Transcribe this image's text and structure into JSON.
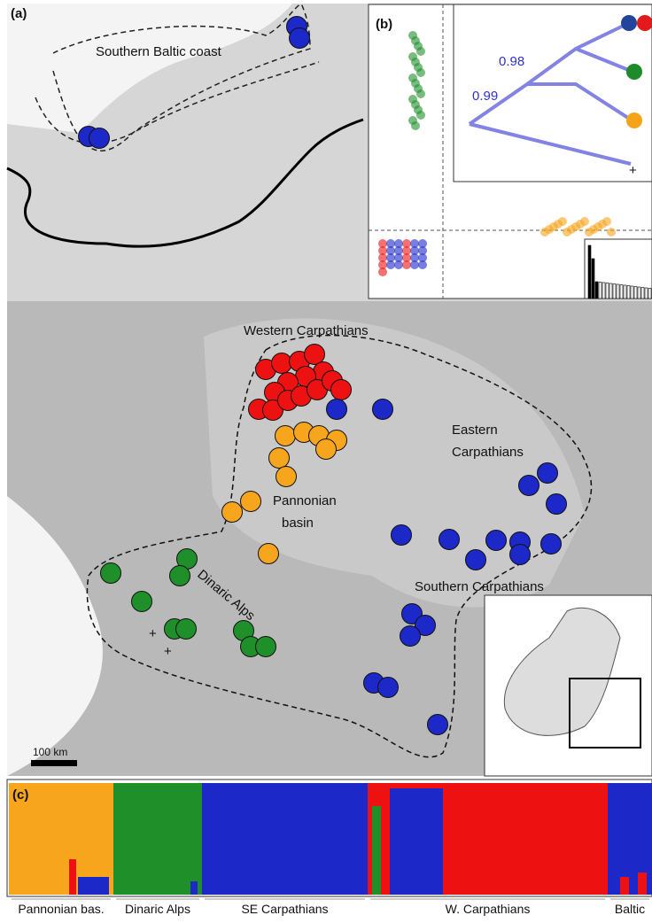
{
  "panel_a": {
    "label": "(a)",
    "regions": {
      "baltic": "Southern Baltic coast",
      "western": "Western Carpathians",
      "eastern": [
        "Eastern",
        "Carpathians"
      ],
      "pannonian": [
        "Pannonian",
        "basin"
      ],
      "dinaric": "Dinaric Alps",
      "southern": "Southern Carpathians"
    },
    "scale_bar": "100 km",
    "markers": [
      "+",
      "+"
    ]
  },
  "panel_b": {
    "label": "(b)",
    "support": [
      0.98,
      0.99
    ],
    "outgroup": "+"
  },
  "panel_c": {
    "label": "(c)",
    "groups": [
      "Pannonian bas.",
      "Dinaric Alps",
      "SE Carpathians",
      "W. Carpathians",
      "Baltic"
    ]
  }
}
